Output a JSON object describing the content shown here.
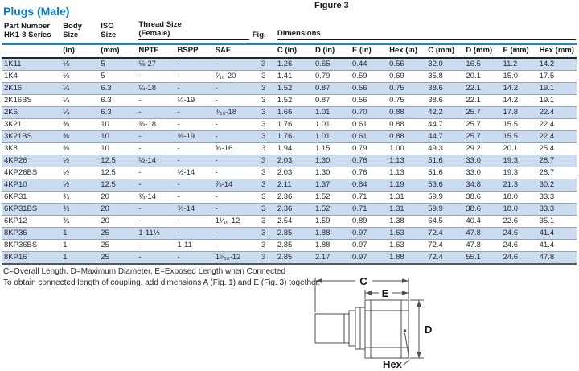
{
  "page": {
    "title": "Plugs (Male)",
    "figure_label": "Figure 3"
  },
  "colors": {
    "title_blue": "#0d7cc1",
    "rule_blue": "#1287c9",
    "row_stripe_blue": "#cbdcf0",
    "dark_rule": "#23272e"
  },
  "table": {
    "header": {
      "part_line1": "Part Number",
      "part_line2": "HK1-8 Series",
      "body_line1": "Body",
      "body_line2": "Size",
      "iso_line1": "ISO",
      "iso_line2": "Size",
      "thread_line1": "Thread Size",
      "thread_line2": "(Female)",
      "fig": "Fig.",
      "dimensions": "Dimensions"
    },
    "subheader": [
      "(in)",
      "(mm)",
      "NPTF",
      "BSPP",
      "SAE",
      "C (in)",
      "D (in)",
      "E (in)",
      "Hex (in)",
      "C (mm)",
      "D (mm)",
      "E (mm)",
      "Hex (mm)"
    ],
    "rows": [
      [
        "1K11",
        "⅛",
        "5",
        "⅛-27",
        "-",
        "-",
        "3",
        "1.26",
        "0.65",
        "0.44",
        "0.56",
        "32.0",
        "16.5",
        "11.2",
        "14.2"
      ],
      [
        "1K4",
        "⅛",
        "5",
        "-",
        "-",
        "⁷⁄₁₆-20",
        "3",
        "1.41",
        "0.79",
        "0.59",
        "0.69",
        "35.8",
        "20.1",
        "15.0",
        "17.5"
      ],
      [
        "2K16",
        "¼",
        "6.3",
        "¼-18",
        "-",
        "-",
        "3",
        "1.52",
        "0.87",
        "0.56",
        "0.75",
        "38.6",
        "22.1",
        "14.2",
        "19.1"
      ],
      [
        "2K16BS",
        "¼",
        "6.3",
        "-",
        "¼-19",
        "-",
        "3",
        "1.52",
        "0.87",
        "0.56",
        "0.75",
        "38.6",
        "22.1",
        "14.2",
        "19.1"
      ],
      [
        "2K6",
        "¼",
        "6.3",
        "-",
        "-",
        "⁹⁄₁₆-18",
        "3",
        "1.66",
        "1.01",
        "0.70",
        "0.88",
        "42.2",
        "25.7",
        "17.8",
        "22.4"
      ],
      [
        "3K21",
        "⅜",
        "10",
        "⅜-18",
        "-",
        "-",
        "3",
        "1.76",
        "1.01",
        "0.61",
        "0.88",
        "44.7",
        "25.7",
        "15.5",
        "22.4"
      ],
      [
        "3K21BS",
        "⅜",
        "10",
        "-",
        "⅜-19",
        "-",
        "3",
        "1.76",
        "1.01",
        "0.61",
        "0.88",
        "44.7",
        "25.7",
        "15.5",
        "22.4"
      ],
      [
        "3K8",
        "⅜",
        "10",
        "-",
        "-",
        "¾-16",
        "3",
        "1.94",
        "1.15",
        "0.79",
        "1.00",
        "49.3",
        "29.2",
        "20.1",
        "25.4"
      ],
      [
        "4KP26",
        "½",
        "12.5",
        "½-14",
        "-",
        "-",
        "3",
        "2.03",
        "1.30",
        "0.76",
        "1.13",
        "51.6",
        "33.0",
        "19.3",
        "28.7"
      ],
      [
        "4KP26BS",
        "½",
        "12.5",
        "-",
        "½-14",
        "-",
        "3",
        "2.03",
        "1.30",
        "0.76",
        "1.13",
        "51.6",
        "33.0",
        "19.3",
        "28.7"
      ],
      [
        "4KP10",
        "½",
        "12.5",
        "-",
        "-",
        "⅞-14",
        "3",
        "2.11",
        "1.37",
        "0.84",
        "1.19",
        "53.6",
        "34.8",
        "21.3",
        "30.2"
      ],
      [
        "6KP31",
        "¾",
        "20",
        "¾-14",
        "-",
        "-",
        "3",
        "2.36",
        "1.52",
        "0.71",
        "1.31",
        "59.9",
        "38.6",
        "18.0",
        "33.3"
      ],
      [
        "6KP31BS",
        "¾",
        "20",
        "-",
        "¾-14",
        "-",
        "3",
        "2.36",
        "1.52",
        "0.71",
        "1.31",
        "59.9",
        "38.6",
        "18.0",
        "33.3"
      ],
      [
        "6KP12",
        "¾",
        "20",
        "-",
        "-",
        "1¹⁄₁₆-12",
        "3",
        "2.54",
        "1.59",
        "0.89",
        "1.38",
        "64.5",
        "40.4",
        "22.6",
        "35.1"
      ],
      [
        "8KP36",
        "1",
        "25",
        "1-11½",
        "-",
        "-",
        "3",
        "2.85",
        "1.88",
        "0.97",
        "1.63",
        "72.4",
        "47.8",
        "24.6",
        "41.4"
      ],
      [
        "8KP36BS",
        "1",
        "25",
        "-",
        "1-11",
        "-",
        "3",
        "2.85",
        "1.88",
        "0.97",
        "1.63",
        "72.4",
        "47.8",
        "24.6",
        "41.4"
      ],
      [
        "8KP16",
        "1",
        "25",
        "-",
        "-",
        "1⁵⁄₁₆-12",
        "3",
        "2.85",
        "2.17",
        "0.97",
        "1.88",
        "72.4",
        "55.1",
        "24.6",
        "47.8"
      ]
    ]
  },
  "footnotes": {
    "line1": "C=Overall Length, D=Maximum Diameter, E=Exposed Length when Connected",
    "line2": "To obtain connected length of coupling, add dimensions A (Fig. 1) and E (Fig. 3) together."
  },
  "diagram": {
    "labels": {
      "c": "C",
      "e": "E",
      "d": "D",
      "hex": "Hex"
    }
  }
}
